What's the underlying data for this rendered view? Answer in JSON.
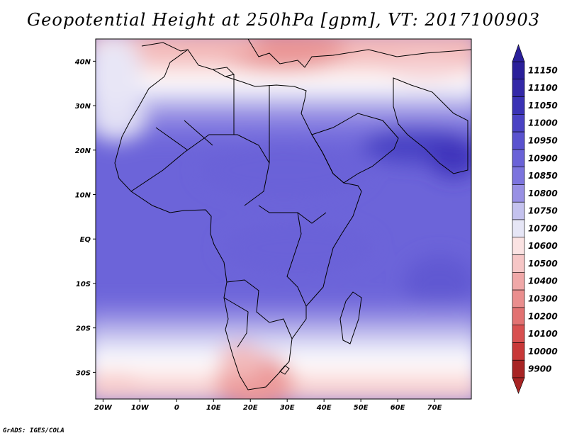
{
  "title": "Geopotential Height at 250hPa [gpm], VT: 2017100903",
  "footer": "GrADS: IGES/COLA",
  "chart_data": {
    "type": "heatmap",
    "variable": "Geopotential Height",
    "level": "250hPa",
    "units": "gpm",
    "valid_time": "2017100903",
    "lon_range": [
      -22,
      80
    ],
    "lat_range": [
      -36,
      45
    ],
    "x_ticks": [
      {
        "value": -20,
        "label": "20W"
      },
      {
        "value": -10,
        "label": "10W"
      },
      {
        "value": 0,
        "label": "0"
      },
      {
        "value": 10,
        "label": "10E"
      },
      {
        "value": 20,
        "label": "20E"
      },
      {
        "value": 30,
        "label": "30E"
      },
      {
        "value": 40,
        "label": "40E"
      },
      {
        "value": 50,
        "label": "50E"
      },
      {
        "value": 60,
        "label": "60E"
      },
      {
        "value": 70,
        "label": "70E"
      }
    ],
    "y_ticks": [
      {
        "value": 40,
        "label": "40N"
      },
      {
        "value": 30,
        "label": "30N"
      },
      {
        "value": 20,
        "label": "20N"
      },
      {
        "value": 10,
        "label": "10N"
      },
      {
        "value": 0,
        "label": "EQ"
      },
      {
        "value": -10,
        "label": "10S"
      },
      {
        "value": -20,
        "label": "20S"
      },
      {
        "value": -30,
        "label": "30S"
      }
    ],
    "colorbar": {
      "levels": [
        "11150",
        "11100",
        "11050",
        "11000",
        "10950",
        "10900",
        "10850",
        "10800",
        "10750",
        "10700",
        "10600",
        "10500",
        "10400",
        "10300",
        "10200",
        "10100",
        "10000",
        "9900"
      ],
      "colors": [
        "#2a1f9a",
        "#3328a8",
        "#3a32b5",
        "#4a42c4",
        "#5a52cf",
        "#6a62d8",
        "#7c74de",
        "#9890e4",
        "#c4c2ee",
        "#e6e6f6",
        "#fbe3e3",
        "#f6c6c6",
        "#f0a8a8",
        "#ea8e8e",
        "#e27272",
        "#d85050",
        "#c83838",
        "#a82424"
      ]
    }
  }
}
